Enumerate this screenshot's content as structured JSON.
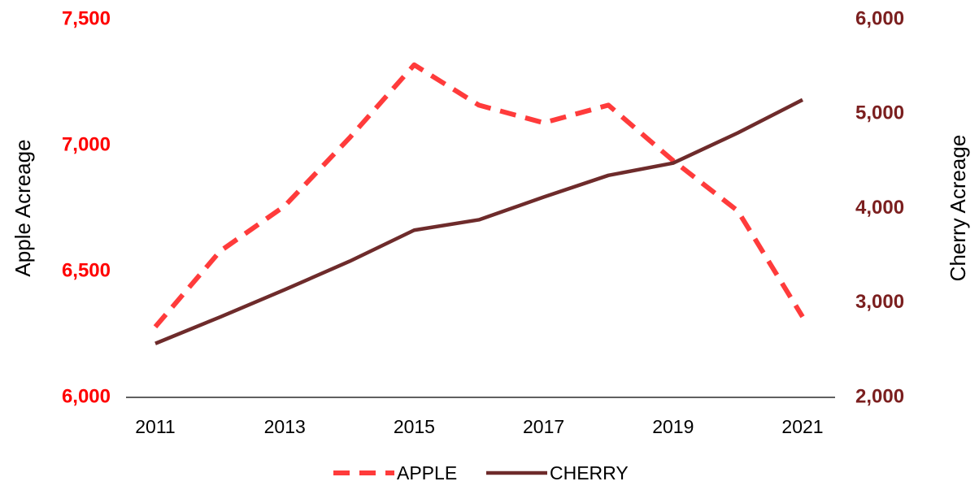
{
  "chart_data": {
    "type": "line",
    "x": [
      2011,
      2012,
      2013,
      2014,
      2015,
      2016,
      2017,
      2018,
      2019,
      2020,
      2021
    ],
    "xlim": [
      2011,
      2021
    ],
    "xticks": [
      2011,
      2013,
      2015,
      2017,
      2019,
      2021
    ],
    "ylabel": "Apple Acreage",
    "y2label": "Cherry Acreage",
    "ylim": [
      6000,
      7500
    ],
    "yticks": [
      {
        "value": 6000,
        "label": "6,000"
      },
      {
        "value": 6500,
        "label": "6,500"
      },
      {
        "value": 7000,
        "label": "7,000"
      },
      {
        "value": 7500,
        "label": "7,500"
      }
    ],
    "y2lim": [
      2000,
      6000
    ],
    "y2ticks": [
      {
        "value": 2000,
        "label": "2,000"
      },
      {
        "value": 3000,
        "label": "3,000"
      },
      {
        "value": 4000,
        "label": "4,000"
      },
      {
        "value": 5000,
        "label": "5,000"
      },
      {
        "value": 6000,
        "label": "6,000"
      }
    ],
    "ytick_color": "#ff0000",
    "y2tick_color": "#7b1f1f",
    "legend": "bottom",
    "series": [
      {
        "name": "APPLE",
        "color": "#ff3b3b",
        "dash": true,
        "values": [
          6280,
          6580,
          6760,
          7030,
          7320,
          7160,
          7090,
          7160,
          6940,
          6740,
          6320
        ]
      },
      {
        "name": "CHERRY",
        "color": "#6e2b2b",
        "dash": false,
        "axis": "y2",
        "values": [
          2570,
          2850,
          3140,
          3440,
          3770,
          3880,
          4120,
          4350,
          4480,
          4800,
          5150
        ]
      }
    ]
  }
}
